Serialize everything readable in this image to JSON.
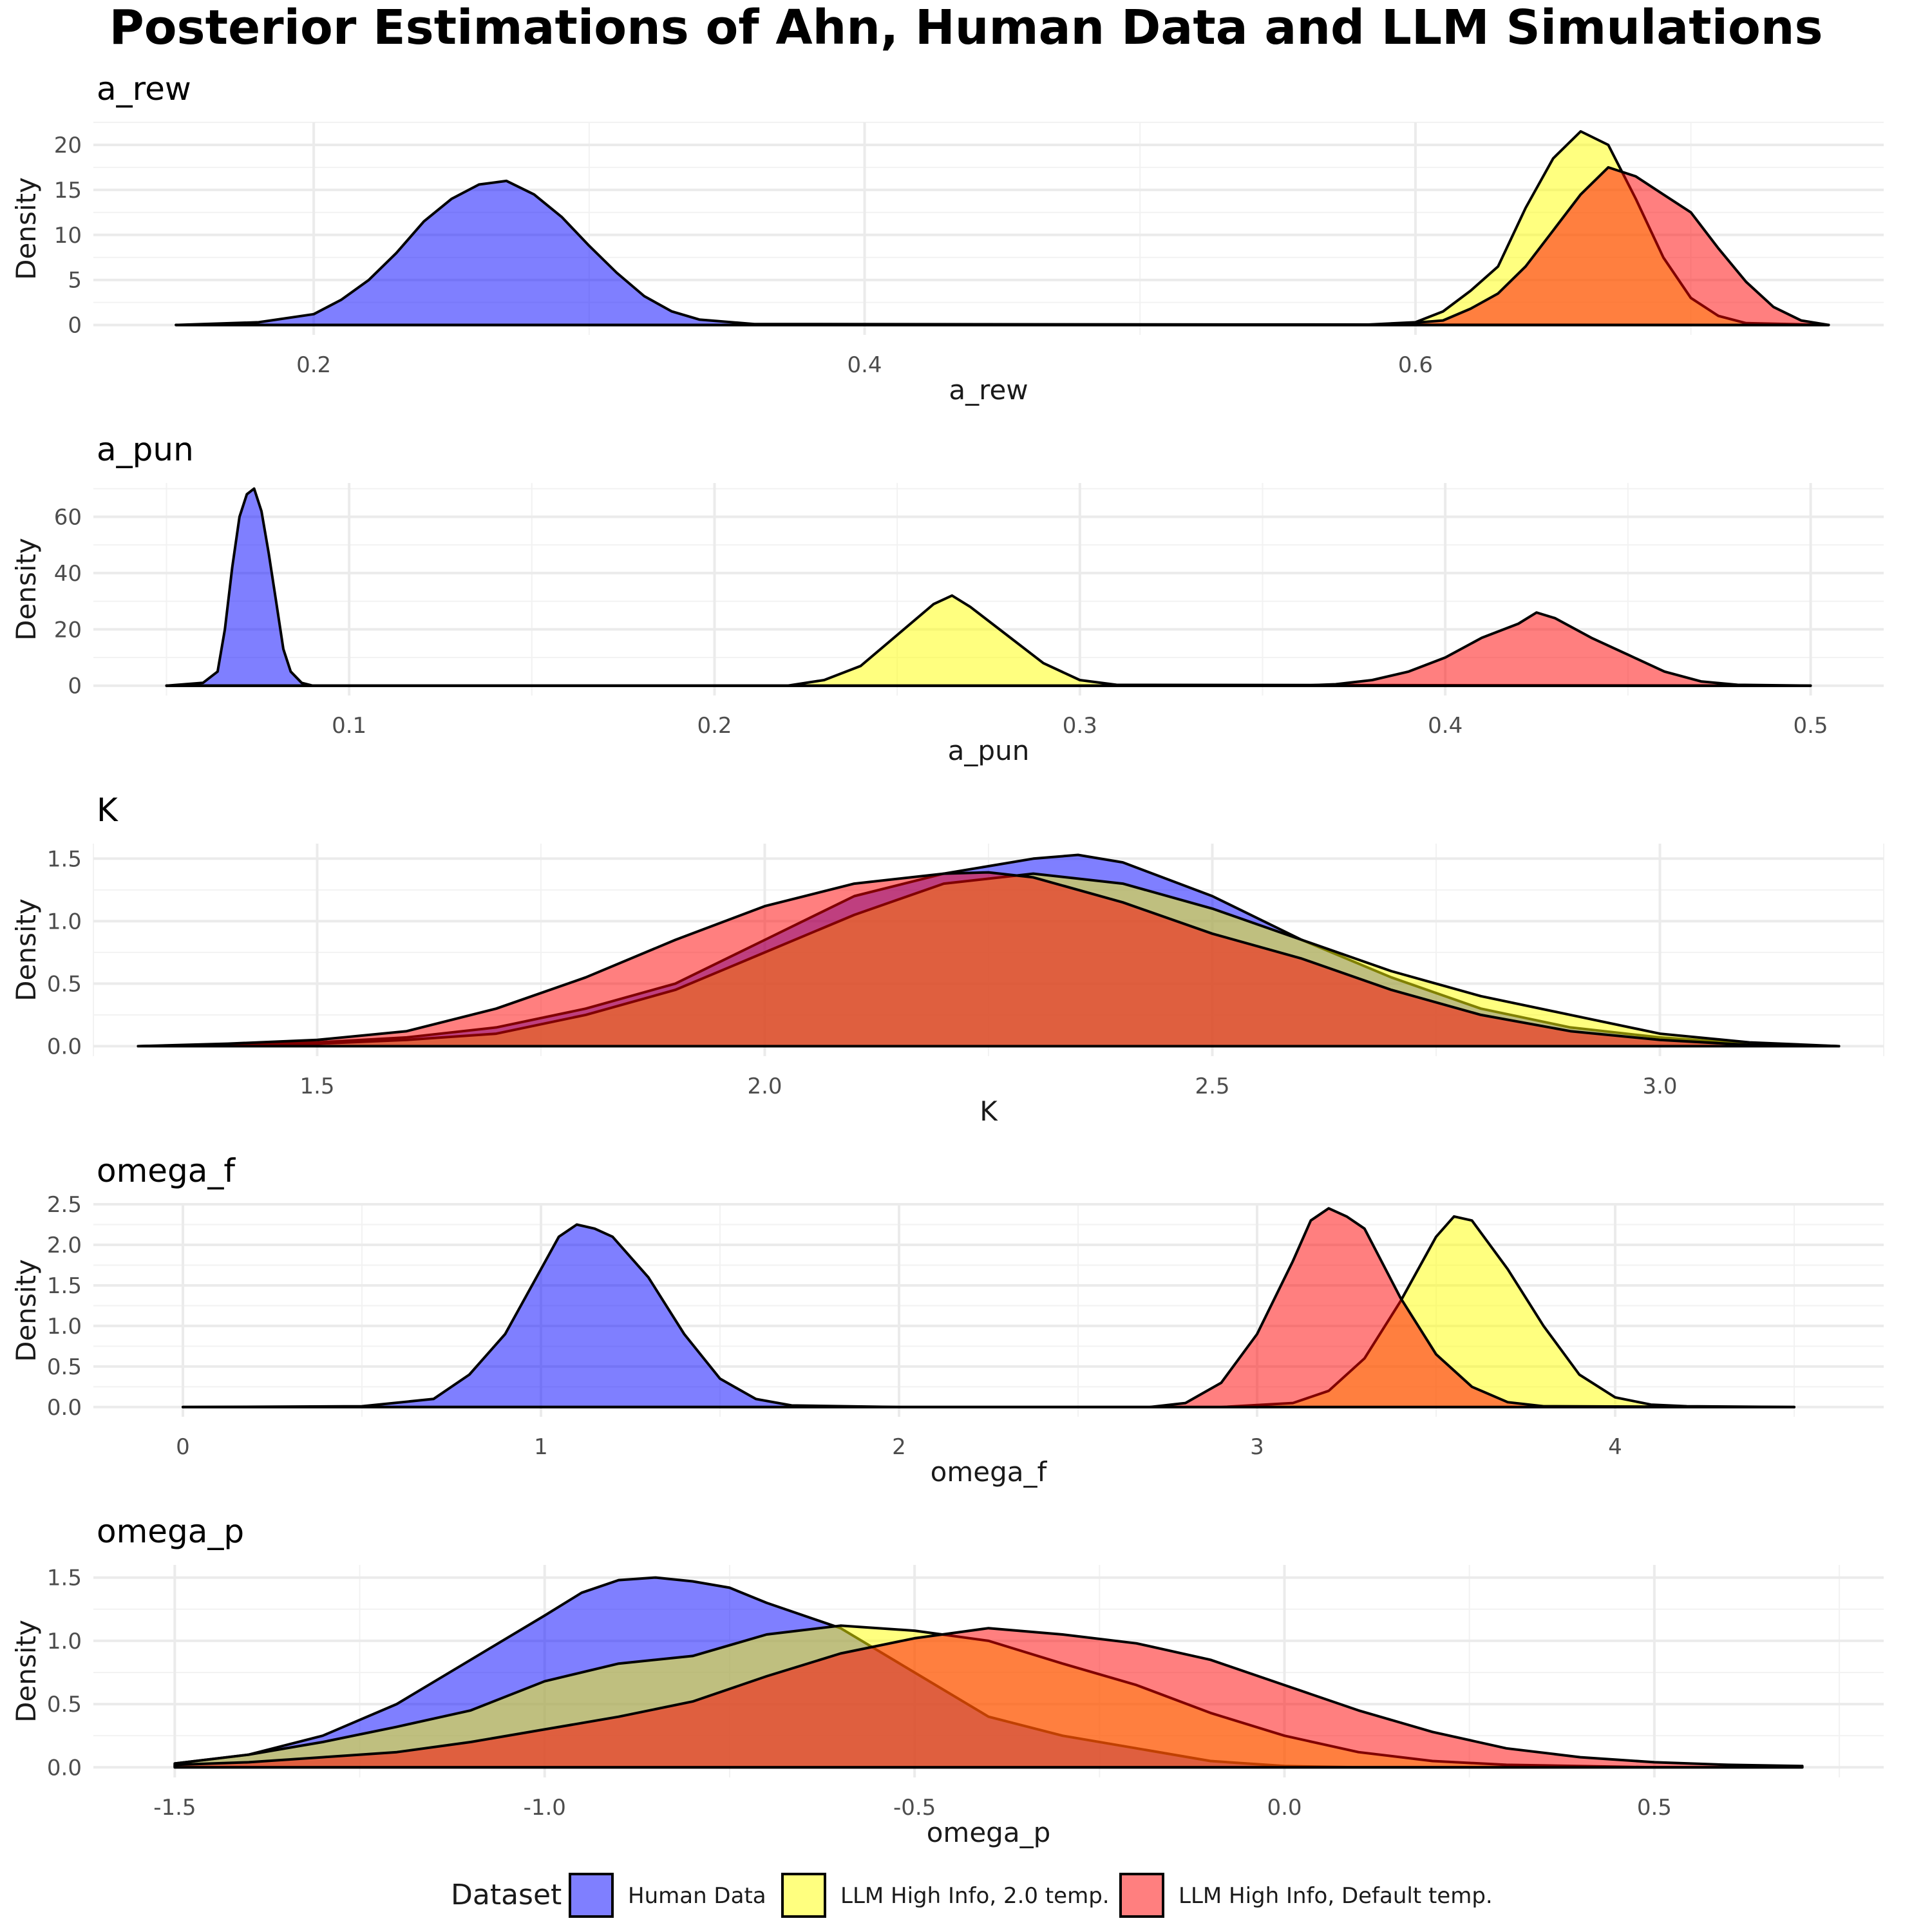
{
  "title": "Posterior Estimations of Ahn, Human Data and LLM Simulations",
  "legend": {
    "title": "Dataset",
    "entries": [
      {
        "label": "Human Data",
        "color": "#0000ff"
      },
      {
        "label": "LLM High Info, 2.0 temp.",
        "color": "#ffff00"
      },
      {
        "label": "LLM High Info, Default temp.",
        "color": "#ff0000"
      }
    ],
    "position": "bottom"
  },
  "chart_data": [
    {
      "type": "area",
      "title": "a_rew",
      "xlabel": "a_rew",
      "ylabel": "Density",
      "xlim": [
        0.12,
        0.77
      ],
      "ylim": [
        -1.1,
        22.5
      ],
      "x_ticks": [
        0.2,
        0.4,
        0.6
      ],
      "x_tick_labels": [
        "0.2",
        "0.4",
        "0.6"
      ],
      "y_ticks": [
        0,
        5,
        10,
        15,
        20
      ],
      "y_tick_labels": [
        "0",
        "5",
        "10",
        "15",
        "20"
      ],
      "grid": true,
      "series": [
        {
          "name": "Human Data",
          "x": [
            0.15,
            0.18,
            0.2,
            0.21,
            0.22,
            0.23,
            0.24,
            0.25,
            0.26,
            0.27,
            0.28,
            0.29,
            0.3,
            0.31,
            0.32,
            0.33,
            0.34,
            0.36,
            0.75
          ],
          "y": [
            0,
            0.3,
            1.2,
            2.8,
            5,
            8,
            11.5,
            14,
            15.6,
            16,
            14.5,
            12,
            8.8,
            5.8,
            3.2,
            1.5,
            0.6,
            0.1,
            0
          ]
        },
        {
          "name": "LLM High Info, 2.0 temp.",
          "x": [
            0.15,
            0.58,
            0.6,
            0.61,
            0.62,
            0.63,
            0.64,
            0.65,
            0.66,
            0.67,
            0.68,
            0.69,
            0.7,
            0.71,
            0.72,
            0.75
          ],
          "y": [
            0,
            0,
            0.3,
            1.5,
            3.8,
            6.5,
            13,
            18.5,
            21.5,
            20,
            14,
            7.5,
            3,
            1,
            0.2,
            0
          ]
        },
        {
          "name": "LLM High Info, Default temp.",
          "x": [
            0.15,
            0.59,
            0.61,
            0.62,
            0.63,
            0.64,
            0.65,
            0.66,
            0.67,
            0.68,
            0.69,
            0.7,
            0.71,
            0.72,
            0.73,
            0.74,
            0.75
          ],
          "y": [
            0,
            0,
            0.5,
            1.8,
            3.5,
            6.5,
            10.5,
            14.5,
            17.5,
            16.5,
            14.5,
            12.5,
            8.5,
            4.8,
            2,
            0.5,
            0
          ]
        }
      ]
    },
    {
      "type": "area",
      "title": "a_pun",
      "xlabel": "a_pun",
      "ylabel": "Density",
      "xlim": [
        0.03,
        0.52
      ],
      "ylim": [
        -3.5,
        72
      ],
      "x_ticks": [
        0.1,
        0.2,
        0.3,
        0.4,
        0.5
      ],
      "x_tick_labels": [
        "0.1",
        "0.2",
        "0.3",
        "0.4",
        "0.5"
      ],
      "y_ticks": [
        0,
        20,
        40,
        60
      ],
      "y_tick_labels": [
        "0",
        "20",
        "40",
        "60"
      ],
      "grid": true,
      "series": [
        {
          "name": "Human Data",
          "x": [
            0.05,
            0.06,
            0.064,
            0.066,
            0.068,
            0.07,
            0.072,
            0.074,
            0.076,
            0.078,
            0.08,
            0.082,
            0.084,
            0.087,
            0.09,
            0.5
          ],
          "y": [
            0,
            1,
            5,
            20,
            42,
            60,
            68,
            70,
            62,
            47,
            30,
            13,
            5,
            1,
            0,
            0
          ]
        },
        {
          "name": "LLM High Info, 2.0 temp.",
          "x": [
            0.05,
            0.22,
            0.23,
            0.24,
            0.25,
            0.26,
            0.265,
            0.27,
            0.28,
            0.29,
            0.3,
            0.31,
            0.5
          ],
          "y": [
            0,
            0,
            2,
            7,
            18,
            29,
            32,
            28,
            18,
            8,
            2,
            0.3,
            0
          ]
        },
        {
          "name": "LLM High Info, Default temp.",
          "x": [
            0.05,
            0.36,
            0.37,
            0.38,
            0.39,
            0.4,
            0.41,
            0.42,
            0.425,
            0.43,
            0.44,
            0.45,
            0.46,
            0.47,
            0.48,
            0.5
          ],
          "y": [
            0,
            0,
            0.5,
            2,
            5,
            10,
            17,
            22,
            26,
            24,
            17,
            11,
            5,
            1.5,
            0.3,
            0
          ]
        }
      ]
    },
    {
      "type": "area",
      "title": "K",
      "xlabel": "K",
      "ylabel": "Density",
      "xlim": [
        1.25,
        3.25
      ],
      "ylim": [
        -0.08,
        1.62
      ],
      "x_ticks": [
        1.5,
        2.0,
        2.5,
        3.0
      ],
      "x_tick_labels": [
        "1.5",
        "2.0",
        "2.5",
        "3.0"
      ],
      "y_ticks": [
        0,
        0.5,
        1.0,
        1.5
      ],
      "y_tick_labels": [
        "0.0",
        "0.5",
        "1.0",
        "1.5"
      ],
      "grid": true,
      "series": [
        {
          "name": "Human Data",
          "x": [
            1.3,
            1.4,
            1.5,
            1.6,
            1.7,
            1.8,
            1.9,
            2.0,
            2.1,
            2.2,
            2.3,
            2.35,
            2.4,
            2.5,
            2.6,
            2.7,
            2.8,
            2.9,
            3.0,
            3.1,
            3.2
          ],
          "y": [
            0,
            0.01,
            0.03,
            0.07,
            0.15,
            0.3,
            0.5,
            0.85,
            1.2,
            1.38,
            1.5,
            1.53,
            1.47,
            1.2,
            0.85,
            0.55,
            0.3,
            0.15,
            0.07,
            0.02,
            0
          ]
        },
        {
          "name": "LLM High Info, 2.0 temp.",
          "x": [
            1.3,
            1.4,
            1.5,
            1.6,
            1.7,
            1.8,
            1.9,
            2.0,
            2.1,
            2.2,
            2.3,
            2.4,
            2.5,
            2.6,
            2.7,
            2.8,
            2.9,
            3.0,
            3.1,
            3.2
          ],
          "y": [
            0,
            0.01,
            0.02,
            0.05,
            0.1,
            0.25,
            0.45,
            0.75,
            1.05,
            1.3,
            1.38,
            1.3,
            1.1,
            0.85,
            0.6,
            0.4,
            0.25,
            0.1,
            0.03,
            0
          ]
        },
        {
          "name": "LLM High Info, Default temp.",
          "x": [
            1.3,
            1.4,
            1.5,
            1.6,
            1.7,
            1.8,
            1.9,
            2.0,
            2.1,
            2.2,
            2.25,
            2.3,
            2.4,
            2.5,
            2.6,
            2.7,
            2.8,
            2.9,
            3.0,
            3.1,
            3.2
          ],
          "y": [
            0,
            0.02,
            0.05,
            0.12,
            0.3,
            0.55,
            0.85,
            1.12,
            1.3,
            1.38,
            1.39,
            1.35,
            1.15,
            0.9,
            0.7,
            0.45,
            0.25,
            0.12,
            0.05,
            0.01,
            0
          ]
        }
      ]
    },
    {
      "type": "area",
      "title": "omega_f",
      "xlabel": "omega_f",
      "ylabel": "Density",
      "xlim": [
        -0.25,
        4.75
      ],
      "ylim": [
        -0.12,
        2.5
      ],
      "x_ticks": [
        0,
        1,
        2,
        3,
        4
      ],
      "x_tick_labels": [
        "0",
        "1",
        "2",
        "3",
        "4"
      ],
      "y_ticks": [
        0,
        0.5,
        1.0,
        1.5,
        2.0,
        2.5
      ],
      "y_tick_labels": [
        "0.0",
        "0.5",
        "1.0",
        "1.5",
        "2.0",
        "2.5"
      ],
      "grid": true,
      "series": [
        {
          "name": "Human Data",
          "x": [
            0,
            0.5,
            0.7,
            0.8,
            0.9,
            1.0,
            1.05,
            1.1,
            1.15,
            1.2,
            1.3,
            1.4,
            1.5,
            1.6,
            1.7,
            2.0,
            4.5
          ],
          "y": [
            0,
            0.01,
            0.1,
            0.4,
            0.9,
            1.7,
            2.1,
            2.25,
            2.2,
            2.1,
            1.6,
            0.9,
            0.35,
            0.1,
            0.02,
            0,
            0
          ]
        },
        {
          "name": "LLM High Info, 2.0 temp.",
          "x": [
            0,
            2.9,
            3.1,
            3.2,
            3.3,
            3.4,
            3.5,
            3.55,
            3.6,
            3.7,
            3.8,
            3.9,
            4.0,
            4.1,
            4.2,
            4.5
          ],
          "y": [
            0,
            0,
            0.05,
            0.2,
            0.6,
            1.3,
            2.1,
            2.35,
            2.3,
            1.7,
            1.0,
            0.4,
            0.12,
            0.03,
            0.01,
            0
          ]
        },
        {
          "name": "LLM High Info, Default temp.",
          "x": [
            0,
            2.7,
            2.8,
            2.9,
            3.0,
            3.1,
            3.15,
            3.2,
            3.25,
            3.3,
            3.4,
            3.5,
            3.6,
            3.7,
            3.8,
            4.5
          ],
          "y": [
            0,
            0,
            0.05,
            0.3,
            0.9,
            1.8,
            2.3,
            2.45,
            2.35,
            2.2,
            1.35,
            0.65,
            0.25,
            0.06,
            0.01,
            0
          ]
        }
      ]
    },
    {
      "type": "area",
      "title": "omega_p",
      "xlabel": "omega_p",
      "ylabel": "Density",
      "xlim": [
        -1.61,
        0.81
      ],
      "ylim": [
        -0.08,
        1.6
      ],
      "x_ticks": [
        -1.5,
        -1.0,
        -0.5,
        0.0,
        0.5
      ],
      "x_tick_labels": [
        "-1.5",
        "-1.0",
        "-0.5",
        "0.0",
        "0.5"
      ],
      "y_ticks": [
        0,
        0.5,
        1.0,
        1.5
      ],
      "y_tick_labels": [
        "0.0",
        "0.5",
        "1.0",
        "1.5"
      ],
      "grid": true,
      "series": [
        {
          "name": "Human Data",
          "x": [
            -1.5,
            -1.4,
            -1.3,
            -1.2,
            -1.1,
            -1.0,
            -0.95,
            -0.9,
            -0.85,
            -0.8,
            -0.75,
            -0.7,
            -0.6,
            -0.5,
            -0.4,
            -0.3,
            -0.2,
            -0.1,
            0.0,
            0.1,
            0.3,
            0.7
          ],
          "y": [
            0.03,
            0.1,
            0.25,
            0.5,
            0.85,
            1.2,
            1.38,
            1.48,
            1.5,
            1.47,
            1.42,
            1.3,
            1.1,
            0.75,
            0.4,
            0.25,
            0.15,
            0.05,
            0.01,
            0,
            0,
            0
          ]
        },
        {
          "name": "LLM High Info, 2.0 temp.",
          "x": [
            -1.5,
            -1.4,
            -1.3,
            -1.2,
            -1.1,
            -1.0,
            -0.9,
            -0.8,
            -0.7,
            -0.6,
            -0.5,
            -0.4,
            -0.3,
            -0.2,
            -0.1,
            0.0,
            0.1,
            0.2,
            0.3,
            0.5,
            0.7
          ],
          "y": [
            0.03,
            0.1,
            0.2,
            0.32,
            0.45,
            0.68,
            0.82,
            0.88,
            1.05,
            1.12,
            1.08,
            1.0,
            0.82,
            0.65,
            0.43,
            0.25,
            0.12,
            0.05,
            0.02,
            0,
            0
          ]
        },
        {
          "name": "LLM High Info, Default temp.",
          "x": [
            -1.5,
            -1.4,
            -1.3,
            -1.2,
            -1.1,
            -1.0,
            -0.9,
            -0.8,
            -0.7,
            -0.6,
            -0.5,
            -0.4,
            -0.3,
            -0.2,
            -0.1,
            0.0,
            0.1,
            0.2,
            0.3,
            0.4,
            0.5,
            0.6,
            0.7
          ],
          "y": [
            0.02,
            0.04,
            0.08,
            0.12,
            0.2,
            0.3,
            0.4,
            0.52,
            0.72,
            0.9,
            1.02,
            1.1,
            1.05,
            0.98,
            0.85,
            0.65,
            0.45,
            0.28,
            0.15,
            0.08,
            0.04,
            0.02,
            0.01
          ]
        }
      ]
    }
  ]
}
